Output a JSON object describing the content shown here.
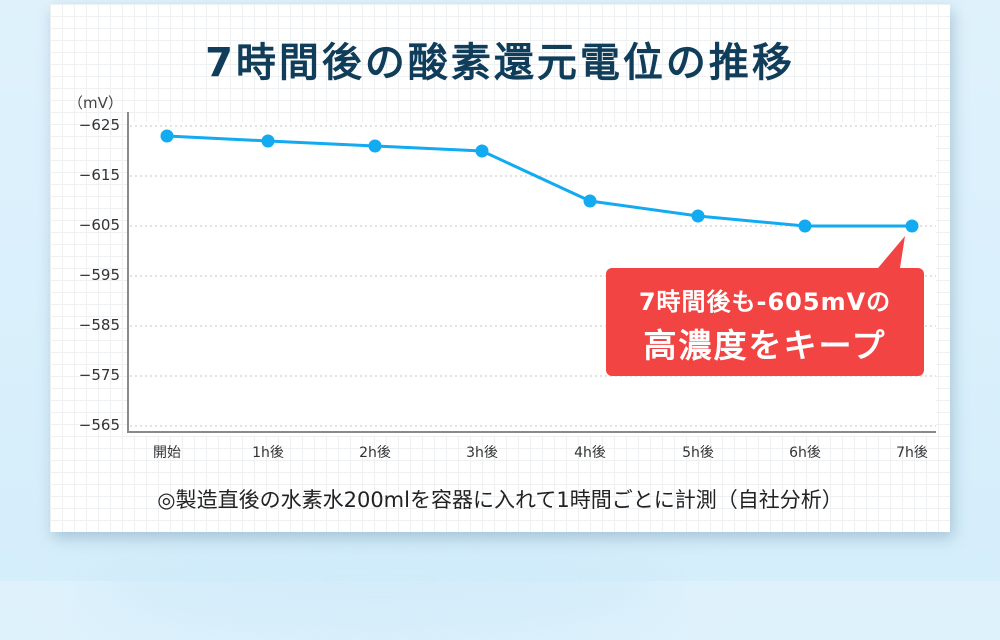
{
  "title": "7時間後の酸素還元電位の推移",
  "unit_label": "（mV）",
  "caption": "◎製造直後の水素水200mlを容器に入れて1時間ごとに計測（自社分析）",
  "callout": {
    "line1": "7時間後も-605mVの",
    "line2": "高濃度をキープ"
  },
  "colors": {
    "line": "#12aaf0",
    "title": "#0f3d5a",
    "callout_bg": "#f34444"
  },
  "y_ticks": [
    "−625",
    "−615",
    "−605",
    "−595",
    "−585",
    "−575",
    "−565"
  ],
  "x_ticks": [
    "開始",
    "1h後",
    "2h後",
    "3h後",
    "4h後",
    "5h後",
    "6h後",
    "7h後"
  ],
  "chart_data": {
    "type": "line",
    "title": "7時間後の酸素還元電位の推移",
    "xlabel": "",
    "ylabel": "（mV）",
    "categories": [
      "開始",
      "1h後",
      "2h後",
      "3h後",
      "4h後",
      "5h後",
      "6h後",
      "7h後"
    ],
    "series": [
      {
        "name": "酸素還元電位 (mV)",
        "values": [
          -623,
          -622,
          -621,
          -620,
          -610,
          -607,
          -605,
          -605
        ]
      }
    ],
    "ylim": [
      -625,
      -565
    ],
    "y_axis_inverted": true,
    "y_ticks": [
      -625,
      -615,
      -605,
      -595,
      -585,
      -575,
      -565
    ],
    "grid": true,
    "legend": "none",
    "annotations": [
      "7時間後も-605mVの 高濃度をキープ"
    ]
  }
}
